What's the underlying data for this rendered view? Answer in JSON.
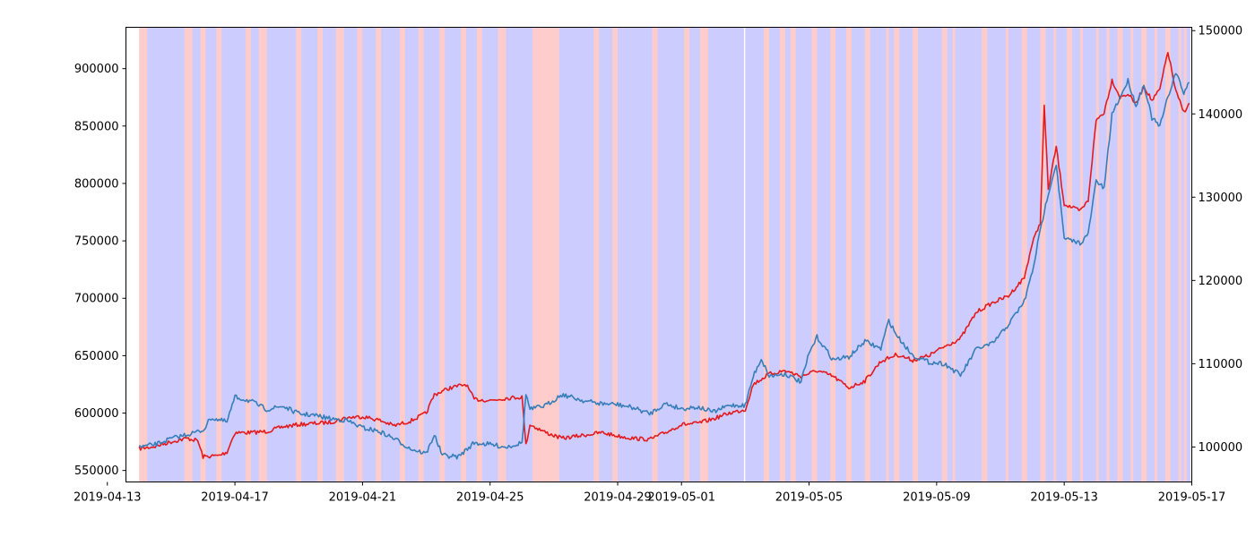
{
  "chart_data": {
    "type": "line",
    "title": "",
    "xlabel": "",
    "ylabel_left": "",
    "ylabel_right": "",
    "x_range": [
      "2019-04-13T14:00",
      "2019-05-17T00:00"
    ],
    "y_left_range": [
      540000,
      936000
    ],
    "y_right_range": [
      95800,
      150400
    ],
    "grid": false,
    "x_ticks": [
      "2019-04-13",
      "2019-04-17",
      "2019-04-21",
      "2019-04-25",
      "2019-04-29",
      "2019-05-01",
      "2019-05-05",
      "2019-05-09",
      "2019-05-13",
      "2019-05-17"
    ],
    "y_left_ticks": [
      "550000",
      "600000",
      "650000",
      "700000",
      "750000",
      "800000",
      "850000",
      "900000"
    ],
    "y_right_ticks": [
      "100000",
      "110000",
      "120000",
      "130000",
      "140000",
      "150000"
    ],
    "colors": {
      "left_series": "#e41a1c",
      "right_series": "#377eb8",
      "band_blue": "#ccccff",
      "band_red": "#ffcccc"
    },
    "series": [
      {
        "axis": "left",
        "color": "#e41a1c",
        "points": [
          [
            "2019-04-14T00:00",
            569000
          ],
          [
            "2019-04-14T12:00",
            571000
          ],
          [
            "2019-04-15T00:00",
            575000
          ],
          [
            "2019-04-15T12:00",
            578000
          ],
          [
            "2019-04-15T20:00",
            576000
          ],
          [
            "2019-04-16T00:00",
            562000
          ],
          [
            "2019-04-16T12:00",
            563000
          ],
          [
            "2019-04-16T18:00",
            566000
          ],
          [
            "2019-04-17T00:00",
            583000
          ],
          [
            "2019-04-17T12:00",
            583000
          ],
          [
            "2019-04-18T00:00",
            584000
          ],
          [
            "2019-04-18T12:00",
            588000
          ],
          [
            "2019-04-19T00:00",
            590000
          ],
          [
            "2019-04-19T12:00",
            591000
          ],
          [
            "2019-04-20T00:00",
            592000
          ],
          [
            "2019-04-20T12:00",
            596000
          ],
          [
            "2019-04-21T00:00",
            597000
          ],
          [
            "2019-04-21T12:00",
            594000
          ],
          [
            "2019-04-22T00:00",
            589000
          ],
          [
            "2019-04-22T12:00",
            593000
          ],
          [
            "2019-04-23T00:00",
            600000
          ],
          [
            "2019-04-23T06:00",
            616000
          ],
          [
            "2019-04-23T18:00",
            622000
          ],
          [
            "2019-04-24T06:00",
            625000
          ],
          [
            "2019-04-24T12:00",
            612000
          ],
          [
            "2019-04-25T00:00",
            611000
          ],
          [
            "2019-04-25T12:00",
            613000
          ],
          [
            "2019-04-26T00:00",
            614000
          ],
          [
            "2019-04-26T03:00",
            572000
          ],
          [
            "2019-04-26T06:00",
            590000
          ],
          [
            "2019-04-26T18:00",
            583000
          ],
          [
            "2019-04-27T06:00",
            578000
          ],
          [
            "2019-04-28T00:00",
            581000
          ],
          [
            "2019-04-28T12:00",
            583000
          ],
          [
            "2019-04-29T00:00",
            580000
          ],
          [
            "2019-04-29T12:00",
            578000
          ],
          [
            "2019-04-30T00:00",
            577000
          ],
          [
            "2019-04-30T12:00",
            583000
          ],
          [
            "2019-05-01T00:00",
            590000
          ],
          [
            "2019-05-01T12:00",
            591000
          ],
          [
            "2019-05-02T00:00",
            595000
          ],
          [
            "2019-05-02T12:00",
            600000
          ],
          [
            "2019-05-03T00:00",
            603000
          ],
          [
            "2019-05-03T06:00",
            625000
          ],
          [
            "2019-05-03T18:00",
            634000
          ],
          [
            "2019-05-04T06:00",
            637000
          ],
          [
            "2019-05-04T18:00",
            632000
          ],
          [
            "2019-05-05T06:00",
            637000
          ],
          [
            "2019-05-05T18:00",
            632000
          ],
          [
            "2019-05-06T06:00",
            622000
          ],
          [
            "2019-05-06T18:00",
            628000
          ],
          [
            "2019-05-07T06:00",
            645000
          ],
          [
            "2019-05-07T18:00",
            651000
          ],
          [
            "2019-05-08T06:00",
            646000
          ],
          [
            "2019-05-08T18:00",
            650000
          ],
          [
            "2019-05-09T06:00",
            658000
          ],
          [
            "2019-05-09T18:00",
            665000
          ],
          [
            "2019-05-10T06:00",
            688000
          ],
          [
            "2019-05-10T18:00",
            696000
          ],
          [
            "2019-05-11T06:00",
            702000
          ],
          [
            "2019-05-11T18:00",
            718000
          ],
          [
            "2019-05-12T00:00",
            748000
          ],
          [
            "2019-05-12T06:00",
            766000
          ],
          [
            "2019-05-12T09:00",
            868000
          ],
          [
            "2019-05-12T12:00",
            795000
          ],
          [
            "2019-05-12T18:00",
            832000
          ],
          [
            "2019-05-13T00:00",
            782000
          ],
          [
            "2019-05-13T12:00",
            776000
          ],
          [
            "2019-05-13T18:00",
            785000
          ],
          [
            "2019-05-14T00:00",
            855000
          ],
          [
            "2019-05-14T06:00",
            862000
          ],
          [
            "2019-05-14T12:00",
            890000
          ],
          [
            "2019-05-14T18:00",
            875000
          ],
          [
            "2019-05-15T00:00",
            878000
          ],
          [
            "2019-05-15T06:00",
            869000
          ],
          [
            "2019-05-15T12:00",
            885000
          ],
          [
            "2019-05-15T18:00",
            872000
          ],
          [
            "2019-05-16T00:00",
            882000
          ],
          [
            "2019-05-16T06:00",
            915000
          ],
          [
            "2019-05-16T12:00",
            880000
          ],
          [
            "2019-05-16T18:00",
            862000
          ],
          [
            "2019-05-16T22:00",
            870000
          ]
        ]
      },
      {
        "axis": "right",
        "color": "#377eb8",
        "points": [
          [
            "2019-04-14T00:00",
            100000
          ],
          [
            "2019-04-14T12:00",
            100300
          ],
          [
            "2019-04-15T00:00",
            101000
          ],
          [
            "2019-04-15T12:00",
            101500
          ],
          [
            "2019-04-16T00:00",
            102000
          ],
          [
            "2019-04-16T06:00",
            103500
          ],
          [
            "2019-04-16T18:00",
            103000
          ],
          [
            "2019-04-17T00:00",
            106000
          ],
          [
            "2019-04-17T12:00",
            105500
          ],
          [
            "2019-04-18T00:00",
            104500
          ],
          [
            "2019-04-18T12:00",
            104900
          ],
          [
            "2019-04-19T00:00",
            104000
          ],
          [
            "2019-04-19T12:00",
            103800
          ],
          [
            "2019-04-20T00:00",
            103400
          ],
          [
            "2019-04-20T12:00",
            103200
          ],
          [
            "2019-04-21T00:00",
            102300
          ],
          [
            "2019-04-21T12:00",
            101900
          ],
          [
            "2019-04-22T00:00",
            101000
          ],
          [
            "2019-04-22T12:00",
            99800
          ],
          [
            "2019-04-23T00:00",
            99200
          ],
          [
            "2019-04-23T06:00",
            101500
          ],
          [
            "2019-04-23T12:00",
            99000
          ],
          [
            "2019-04-24T00:00",
            98800
          ],
          [
            "2019-04-24T12:00",
            100500
          ],
          [
            "2019-04-25T00:00",
            100300
          ],
          [
            "2019-04-25T12:00",
            100000
          ],
          [
            "2019-04-26T00:00",
            100500
          ],
          [
            "2019-04-26T03:00",
            106400
          ],
          [
            "2019-04-26T06:00",
            104500
          ],
          [
            "2019-04-26T18:00",
            105000
          ],
          [
            "2019-04-27T06:00",
            106300
          ],
          [
            "2019-04-28T00:00",
            105500
          ],
          [
            "2019-04-28T12:00",
            105200
          ],
          [
            "2019-04-29T00:00",
            105100
          ],
          [
            "2019-04-29T12:00",
            104700
          ],
          [
            "2019-04-30T00:00",
            104000
          ],
          [
            "2019-04-30T12:00",
            105200
          ],
          [
            "2019-05-01T00:00",
            104600
          ],
          [
            "2019-05-01T12:00",
            104800
          ],
          [
            "2019-05-02T00:00",
            104200
          ],
          [
            "2019-05-02T12:00",
            105000
          ],
          [
            "2019-05-03T00:00",
            105000
          ],
          [
            "2019-05-03T06:00",
            108500
          ],
          [
            "2019-05-03T12:00",
            110600
          ],
          [
            "2019-05-03T18:00",
            108500
          ],
          [
            "2019-05-04T06:00",
            108800
          ],
          [
            "2019-05-04T18:00",
            107800
          ],
          [
            "2019-05-05T00:00",
            111200
          ],
          [
            "2019-05-05T06:00",
            113200
          ],
          [
            "2019-05-05T18:00",
            110500
          ],
          [
            "2019-05-06T06:00",
            110800
          ],
          [
            "2019-05-06T18:00",
            112700
          ],
          [
            "2019-05-07T06:00",
            111800
          ],
          [
            "2019-05-07T12:00",
            115200
          ],
          [
            "2019-05-07T18:00",
            113400
          ],
          [
            "2019-05-08T06:00",
            111000
          ],
          [
            "2019-05-08T18:00",
            110200
          ],
          [
            "2019-05-09T06:00",
            110000
          ],
          [
            "2019-05-09T18:00",
            108600
          ],
          [
            "2019-05-10T06:00",
            111800
          ],
          [
            "2019-05-10T18:00",
            112400
          ],
          [
            "2019-05-11T06:00",
            114700
          ],
          [
            "2019-05-11T18:00",
            117500
          ],
          [
            "2019-05-12T00:00",
            121000
          ],
          [
            "2019-05-12T06:00",
            126000
          ],
          [
            "2019-05-12T12:00",
            130500
          ],
          [
            "2019-05-12T18:00",
            134000
          ],
          [
            "2019-05-13T00:00",
            125000
          ],
          [
            "2019-05-13T12:00",
            124500
          ],
          [
            "2019-05-13T18:00",
            125500
          ],
          [
            "2019-05-14T00:00",
            132000
          ],
          [
            "2019-05-14T06:00",
            131000
          ],
          [
            "2019-05-14T12:00",
            140000
          ],
          [
            "2019-05-14T18:00",
            142000
          ],
          [
            "2019-05-15T00:00",
            144000
          ],
          [
            "2019-05-15T06:00",
            141000
          ],
          [
            "2019-05-15T12:00",
            143500
          ],
          [
            "2019-05-15T18:00",
            139500
          ],
          [
            "2019-05-16T00:00",
            138500
          ],
          [
            "2019-05-16T06:00",
            142000
          ],
          [
            "2019-05-16T12:00",
            145000
          ],
          [
            "2019-05-16T18:00",
            142500
          ],
          [
            "2019-05-16T22:00",
            143800
          ]
        ]
      }
    ],
    "background_bands": {
      "description_start": "2019-04-14T00:00",
      "description_end": "2019-05-16T23:00",
      "red_intervals": [
        [
          "2019-04-14T00:00",
          "2019-04-14T06:00"
        ],
        [
          "2019-04-15T10:00",
          "2019-04-15T16:00"
        ],
        [
          "2019-04-15T22:00",
          "2019-04-16T02:00"
        ],
        [
          "2019-04-16T10:00",
          "2019-04-16T14:00"
        ],
        [
          "2019-04-17T08:00",
          "2019-04-17T12:00"
        ],
        [
          "2019-04-17T18:00",
          "2019-04-18T00:00"
        ],
        [
          "2019-04-18T22:00",
          "2019-04-19T02:00"
        ],
        [
          "2019-04-19T14:00",
          "2019-04-19T18:00"
        ],
        [
          "2019-04-20T04:00",
          "2019-04-20T10:00"
        ],
        [
          "2019-04-20T20:00",
          "2019-04-21T00:00"
        ],
        [
          "2019-04-21T10:00",
          "2019-04-21T14:00"
        ],
        [
          "2019-04-22T04:00",
          "2019-04-22T08:00"
        ],
        [
          "2019-04-22T18:00",
          "2019-04-22T22:00"
        ],
        [
          "2019-04-23T10:00",
          "2019-04-23T14:00"
        ],
        [
          "2019-04-24T02:00",
          "2019-04-24T06:00"
        ],
        [
          "2019-04-24T14:00",
          "2019-04-24T18:00"
        ],
        [
          "2019-04-25T06:00",
          "2019-04-25T12:00"
        ],
        [
          "2019-04-26T08:00",
          "2019-04-27T04:00"
        ],
        [
          "2019-04-28T06:00",
          "2019-04-28T10:00"
        ],
        [
          "2019-04-28T20:00",
          "2019-04-29T00:00"
        ],
        [
          "2019-04-30T02:00",
          "2019-04-30T06:00"
        ],
        [
          "2019-05-01T02:00",
          "2019-05-01T06:00"
        ],
        [
          "2019-05-01T14:00",
          "2019-05-01T20:00"
        ],
        [
          "2019-05-03T14:00",
          "2019-05-03T18:00"
        ],
        [
          "2019-05-04T02:00",
          "2019-05-04T06:00"
        ],
        [
          "2019-05-04T10:00",
          "2019-05-04T14:00"
        ],
        [
          "2019-05-05T02:00",
          "2019-05-05T06:00"
        ],
        [
          "2019-05-05T16:00",
          "2019-05-05T20:00"
        ],
        [
          "2019-05-06T04:00",
          "2019-05-06T08:00"
        ],
        [
          "2019-05-06T18:00",
          "2019-05-06T22:00"
        ],
        [
          "2019-05-07T10:00",
          "2019-05-07T12:00"
        ],
        [
          "2019-05-07T16:00",
          "2019-05-07T20:00"
        ],
        [
          "2019-05-08T06:00",
          "2019-05-08T10:00"
        ],
        [
          "2019-05-09T04:00",
          "2019-05-09T08:00"
        ],
        [
          "2019-05-09T12:00",
          "2019-05-09T14:00"
        ],
        [
          "2019-05-10T10:00",
          "2019-05-10T14:00"
        ],
        [
          "2019-05-11T04:00",
          "2019-05-11T06:00"
        ],
        [
          "2019-05-11T16:00",
          "2019-05-11T20:00"
        ],
        [
          "2019-05-12T06:00",
          "2019-05-12T10:00"
        ],
        [
          "2019-05-12T16:00",
          "2019-05-12T18:00"
        ],
        [
          "2019-05-13T02:00",
          "2019-05-13T06:00"
        ],
        [
          "2019-05-13T12:00",
          "2019-05-13T14:00"
        ],
        [
          "2019-05-14T00:00",
          "2019-05-14T02:00"
        ],
        [
          "2019-05-14T08:00",
          "2019-05-14T10:00"
        ],
        [
          "2019-05-14T16:00",
          "2019-05-14T20:00"
        ],
        [
          "2019-05-15T02:00",
          "2019-05-15T04:00"
        ],
        [
          "2019-05-15T10:00",
          "2019-05-15T14:00"
        ],
        [
          "2019-05-15T20:00",
          "2019-05-15T22:00"
        ],
        [
          "2019-05-16T04:00",
          "2019-05-16T08:00"
        ],
        [
          "2019-05-16T14:00",
          "2019-05-16T16:00"
        ],
        [
          "2019-05-16T18:00",
          "2019-05-16T20:00"
        ]
      ],
      "gaps": [
        [
          "2019-05-02T23:00",
          "2019-05-03T00:00"
        ]
      ]
    }
  }
}
